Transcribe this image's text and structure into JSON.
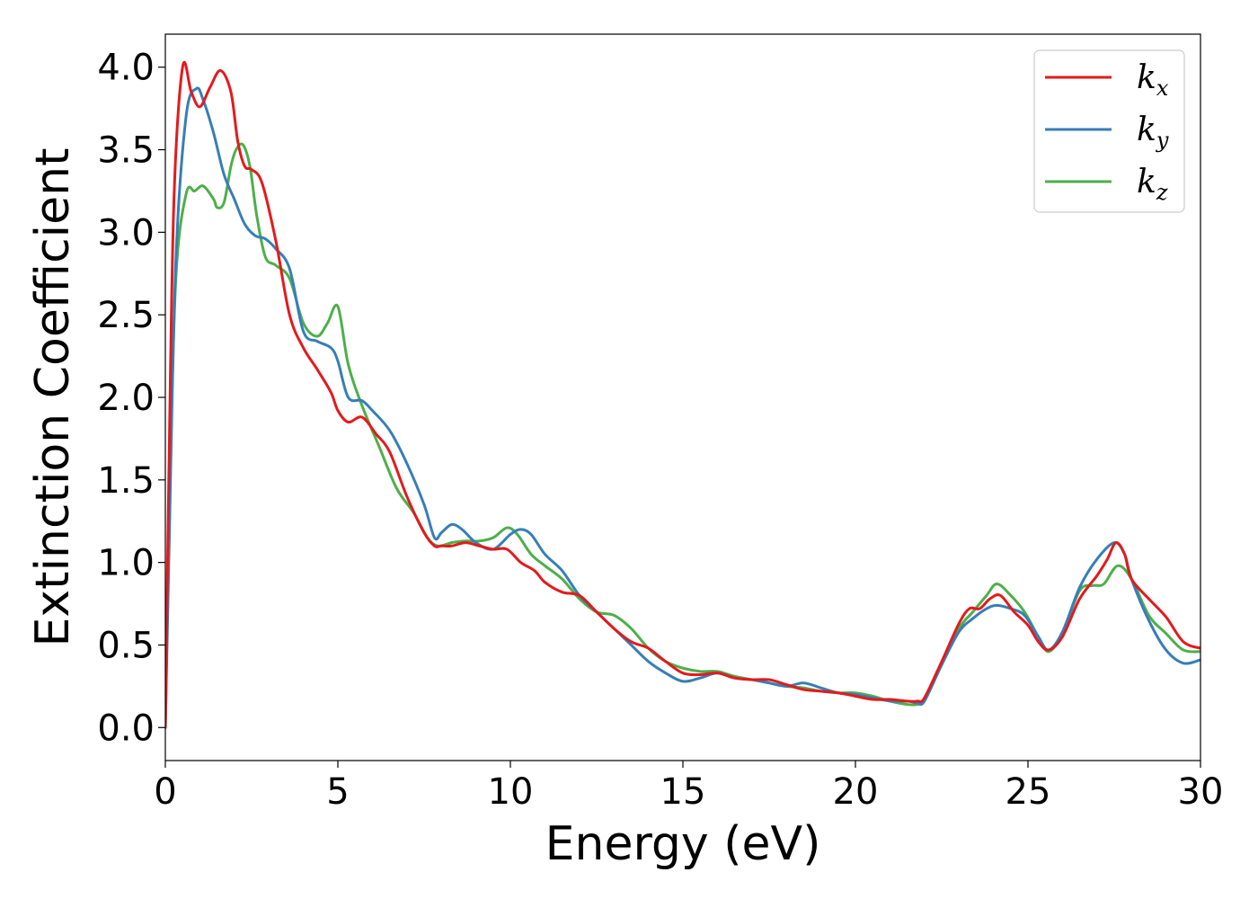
{
  "chart_data": {
    "type": "line",
    "title": "",
    "xlabel": "Energy (eV)",
    "ylabel": "Extinction Coefficient",
    "xlim": [
      0,
      30
    ],
    "ylim": [
      -0.2,
      4.2
    ],
    "xticks": [
      0,
      5,
      10,
      15,
      20,
      25,
      30
    ],
    "yticks": [
      0.0,
      0.5,
      1.0,
      1.5,
      2.0,
      2.5,
      3.0,
      3.5,
      4.0
    ],
    "xtick_labels": [
      "0",
      "5",
      "10",
      "15",
      "20",
      "25",
      "30"
    ],
    "ytick_labels": [
      "0.0",
      "0.5",
      "1.0",
      "1.5",
      "2.0",
      "2.5",
      "3.0",
      "3.5",
      "4.0"
    ],
    "grid": false,
    "legend_position": "top-right",
    "series": [
      {
        "name": "k",
        "subscript": "x",
        "color": "#e41a1c",
        "x": [
          0,
          0.1,
          0.25,
          0.5,
          0.75,
          1.0,
          1.3,
          1.6,
          1.9,
          2.1,
          2.3,
          2.5,
          2.8,
          3.2,
          3.6,
          4.0,
          4.4,
          4.8,
          5.0,
          5.3,
          5.7,
          6.1,
          6.5,
          7.0,
          7.5,
          7.8,
          8.0,
          8.3,
          8.7,
          9.1,
          9.5,
          9.9,
          10.3,
          10.7,
          11.0,
          11.5,
          12.0,
          12.5,
          13.0,
          13.5,
          14.0,
          14.5,
          15.0,
          15.5,
          16.0,
          16.5,
          17.0,
          17.5,
          18.0,
          18.5,
          19.0,
          19.5,
          20.0,
          20.5,
          21.0,
          21.5,
          21.8,
          22.0,
          22.5,
          23.0,
          23.3,
          23.6,
          23.9,
          24.2,
          24.6,
          25.0,
          25.3,
          25.6,
          26.0,
          26.5,
          27.0,
          27.3,
          27.55,
          27.8,
          28.0,
          28.5,
          29.0,
          29.5,
          30.0
        ],
        "y": [
          0.0,
          1.5,
          3.2,
          4.0,
          3.85,
          3.76,
          3.88,
          3.98,
          3.85,
          3.55,
          3.4,
          3.38,
          3.3,
          2.95,
          2.5,
          2.3,
          2.17,
          2.03,
          1.92,
          1.85,
          1.88,
          1.78,
          1.67,
          1.4,
          1.18,
          1.1,
          1.1,
          1.1,
          1.12,
          1.1,
          1.08,
          1.08,
          1.0,
          0.95,
          0.88,
          0.82,
          0.8,
          0.7,
          0.6,
          0.52,
          0.48,
          0.4,
          0.33,
          0.32,
          0.33,
          0.3,
          0.29,
          0.29,
          0.26,
          0.23,
          0.22,
          0.21,
          0.19,
          0.17,
          0.17,
          0.16,
          0.16,
          0.18,
          0.4,
          0.63,
          0.72,
          0.72,
          0.78,
          0.8,
          0.7,
          0.62,
          0.52,
          0.47,
          0.55,
          0.78,
          0.92,
          1.02,
          1.12,
          1.05,
          0.9,
          0.78,
          0.67,
          0.52,
          0.48
        ]
      },
      {
        "name": "k",
        "subscript": "y",
        "color": "#377eb8",
        "x": [
          0,
          0.1,
          0.3,
          0.6,
          0.9,
          1.1,
          1.4,
          1.7,
          2.0,
          2.3,
          2.6,
          2.9,
          3.2,
          3.6,
          4.0,
          4.4,
          4.8,
          5.0,
          5.3,
          5.7,
          6.0,
          6.5,
          7.0,
          7.5,
          7.8,
          8.0,
          8.3,
          8.6,
          9.0,
          9.5,
          10.0,
          10.3,
          10.6,
          11.0,
          11.5,
          12.0,
          12.5,
          13.0,
          13.5,
          14.0,
          14.5,
          15.0,
          15.5,
          16.0,
          16.5,
          17.0,
          17.5,
          18.0,
          18.5,
          19.0,
          19.5,
          20.0,
          20.5,
          21.0,
          21.5,
          21.8,
          22.0,
          22.5,
          23.0,
          23.4,
          23.8,
          24.1,
          24.5,
          24.9,
          25.3,
          25.6,
          26.0,
          26.5,
          27.0,
          27.5,
          27.8,
          28.0,
          28.5,
          29.0,
          29.5,
          30.0
        ],
        "y": [
          0.0,
          1.0,
          2.8,
          3.7,
          3.87,
          3.8,
          3.6,
          3.35,
          3.2,
          3.05,
          2.98,
          2.96,
          2.9,
          2.78,
          2.4,
          2.34,
          2.3,
          2.22,
          2.0,
          1.98,
          1.92,
          1.8,
          1.6,
          1.35,
          1.15,
          1.18,
          1.23,
          1.2,
          1.12,
          1.08,
          1.17,
          1.2,
          1.17,
          1.05,
          0.95,
          0.8,
          0.7,
          0.6,
          0.5,
          0.4,
          0.33,
          0.28,
          0.3,
          0.33,
          0.3,
          0.29,
          0.27,
          0.25,
          0.27,
          0.24,
          0.21,
          0.2,
          0.18,
          0.16,
          0.16,
          0.15,
          0.16,
          0.38,
          0.58,
          0.66,
          0.72,
          0.74,
          0.72,
          0.68,
          0.55,
          0.47,
          0.58,
          0.85,
          1.02,
          1.12,
          1.05,
          0.9,
          0.65,
          0.47,
          0.39,
          0.41
        ]
      },
      {
        "name": "k",
        "subscript": "z",
        "color": "#4daf4a",
        "x": [
          0,
          0.1,
          0.3,
          0.6,
          0.85,
          1.1,
          1.4,
          1.5,
          1.7,
          1.9,
          2.05,
          2.25,
          2.45,
          2.65,
          2.9,
          3.2,
          3.6,
          4.0,
          4.4,
          4.7,
          5.0,
          5.3,
          5.7,
          6.2,
          6.7,
          7.2,
          7.6,
          7.9,
          8.3,
          8.7,
          9.1,
          9.5,
          9.9,
          10.2,
          10.6,
          11.0,
          11.5,
          12.0,
          12.5,
          13.0,
          13.5,
          14.0,
          14.5,
          15.0,
          15.5,
          16.0,
          16.5,
          17.0,
          17.5,
          18.0,
          18.5,
          19.0,
          19.5,
          20.0,
          20.5,
          21.0,
          21.5,
          21.8,
          22.0,
          22.5,
          23.0,
          23.4,
          23.8,
          24.1,
          24.5,
          24.9,
          25.3,
          25.6,
          26.0,
          26.5,
          26.9,
          27.2,
          27.6,
          28.0,
          28.5,
          29.0,
          29.5,
          30.0
        ],
        "y": [
          0.0,
          1.2,
          2.7,
          3.23,
          3.25,
          3.28,
          3.2,
          3.15,
          3.18,
          3.4,
          3.5,
          3.53,
          3.4,
          3.1,
          2.85,
          2.8,
          2.72,
          2.45,
          2.37,
          2.45,
          2.55,
          2.2,
          1.95,
          1.7,
          1.45,
          1.3,
          1.15,
          1.1,
          1.12,
          1.13,
          1.13,
          1.15,
          1.21,
          1.17,
          1.05,
          0.98,
          0.9,
          0.78,
          0.7,
          0.68,
          0.6,
          0.48,
          0.4,
          0.36,
          0.34,
          0.34,
          0.31,
          0.29,
          0.27,
          0.25,
          0.24,
          0.22,
          0.21,
          0.21,
          0.19,
          0.16,
          0.14,
          0.14,
          0.17,
          0.38,
          0.6,
          0.7,
          0.8,
          0.87,
          0.8,
          0.7,
          0.55,
          0.46,
          0.57,
          0.83,
          0.86,
          0.87,
          0.98,
          0.9,
          0.68,
          0.57,
          0.47,
          0.46
        ]
      }
    ]
  }
}
